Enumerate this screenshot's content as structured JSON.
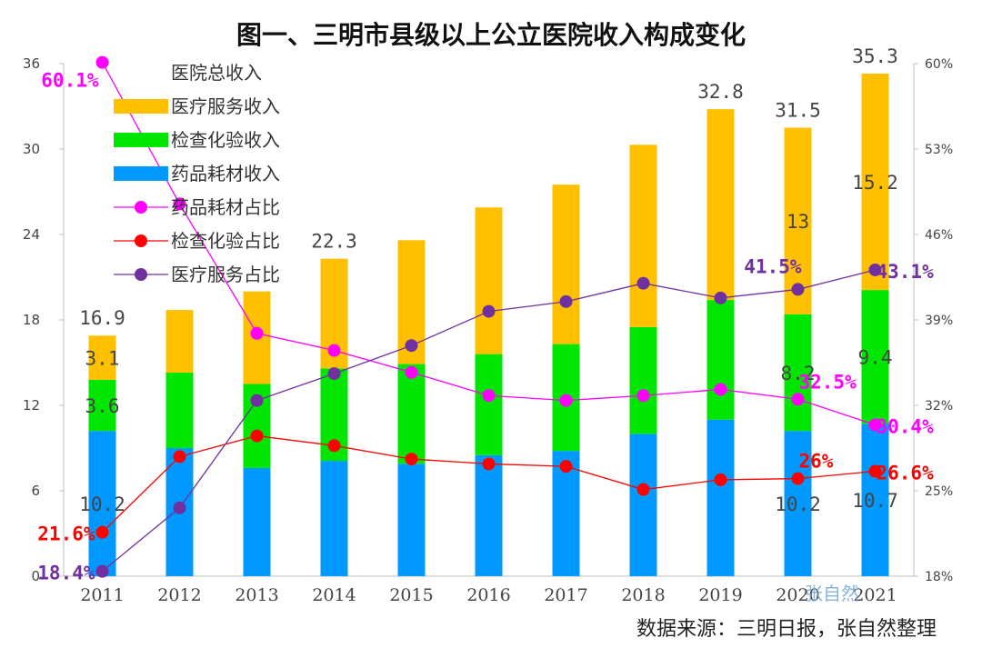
{
  "chart_data": {
    "type": "bar",
    "title": "图一、三明市县级以上公立医院收入构成变化",
    "categories": [
      "2011",
      "2012",
      "2013",
      "2014",
      "2015",
      "2016",
      "2017",
      "2018",
      "2019",
      "2020",
      "2021"
    ],
    "ylim": [
      0,
      36
    ],
    "yticks": [
      "0",
      "6",
      "12",
      "18",
      "24",
      "30",
      "36"
    ],
    "ylim_right": [
      18,
      60
    ],
    "yticks_right": [
      "18%",
      "25%",
      "32%",
      "39%",
      "46%",
      "53%",
      "60%"
    ],
    "total_series_name": "医院总收入",
    "series": [
      {
        "name": "药品耗材收入",
        "color": "#0099FF",
        "values": [
          10.2,
          9.0,
          7.6,
          8.1,
          7.9,
          8.5,
          8.8,
          10.0,
          11.0,
          10.2,
          10.7
        ]
      },
      {
        "name": "检查化验收入",
        "color": "#00E600",
        "values": [
          3.6,
          5.3,
          5.9,
          6.5,
          7.0,
          7.1,
          7.5,
          7.5,
          8.4,
          8.2,
          9.4
        ]
      },
      {
        "name": "医疗服务收入",
        "color": "#FFC000",
        "values": [
          3.1,
          4.4,
          6.5,
          7.7,
          8.7,
          10.3,
          11.2,
          12.8,
          13.4,
          13.1,
          15.2
        ]
      }
    ],
    "totals": [
      16.9,
      18.7,
      20.0,
      22.3,
      23.6,
      25.9,
      27.5,
      30.3,
      32.8,
      31.5,
      35.3
    ],
    "lines": [
      {
        "name": "药品耗材占比",
        "color": "#FF00FF",
        "values": [
          60.1,
          48.5,
          37.9,
          36.5,
          34.7,
          32.8,
          32.4,
          32.8,
          33.3,
          32.5,
          30.4
        ]
      },
      {
        "name": "检查化验占比",
        "color": "#FF0000",
        "values": [
          21.6,
          27.8,
          29.5,
          28.7,
          27.6,
          27.2,
          27.0,
          25.1,
          25.9,
          26.0,
          26.6
        ]
      },
      {
        "name": "医疗服务占比",
        "color": "#7030A0",
        "values": [
          18.4,
          23.6,
          32.4,
          34.6,
          36.9,
          39.7,
          40.5,
          42.0,
          40.8,
          41.5,
          43.1
        ]
      }
    ],
    "bar_labels": [
      {
        "index": 0,
        "series": 0,
        "text": "10.2"
      },
      {
        "index": 0,
        "series": 1,
        "text": "3.6"
      },
      {
        "index": 0,
        "series": 2,
        "text": "3.1"
      },
      {
        "index": 0,
        "series": "total",
        "text": "16.9"
      },
      {
        "index": 3,
        "series": "total",
        "text": "22.3"
      },
      {
        "index": 8,
        "series": "total",
        "text": "32.8"
      },
      {
        "index": 9,
        "series": "total",
        "text": "31.5"
      },
      {
        "index": 9,
        "series": 2,
        "text": "13"
      },
      {
        "index": 9,
        "series": 1,
        "text": "8.2"
      },
      {
        "index": 9,
        "series": 0,
        "text": "10.2"
      },
      {
        "index": 10,
        "series": "total",
        "text": "35.3"
      },
      {
        "index": 10,
        "series": 2,
        "text": "15.2"
      },
      {
        "index": 10,
        "series": 1,
        "text": "9.4"
      },
      {
        "index": 10,
        "series": 0,
        "text": "10.7"
      }
    ],
    "line_labels": [
      {
        "line": 0,
        "index": 0,
        "text": "60.1%"
      },
      {
        "line": 1,
        "index": 0,
        "text": "21.6%"
      },
      {
        "line": 2,
        "index": 0,
        "text": "18.4%"
      },
      {
        "line": 0,
        "index": 9,
        "text": "32.5%"
      },
      {
        "line": 1,
        "index": 9,
        "text": "26%"
      },
      {
        "line": 2,
        "index": 9,
        "text": "41.5%"
      },
      {
        "line": 0,
        "index": 10,
        "text": "30.4%"
      },
      {
        "line": 1,
        "index": 10,
        "text": "26.6%"
      },
      {
        "line": 2,
        "index": 10,
        "text": "43.1%"
      }
    ],
    "legend": [
      "医院总收入",
      "医疗服务收入",
      "检查化验收入",
      "药品耗材收入",
      "药品耗材占比",
      "检查化验占比",
      "医疗服务占比"
    ],
    "legend_position": "top-left"
  },
  "source_note": "数据来源：三明日报，张自然整理",
  "watermark": "张自然"
}
